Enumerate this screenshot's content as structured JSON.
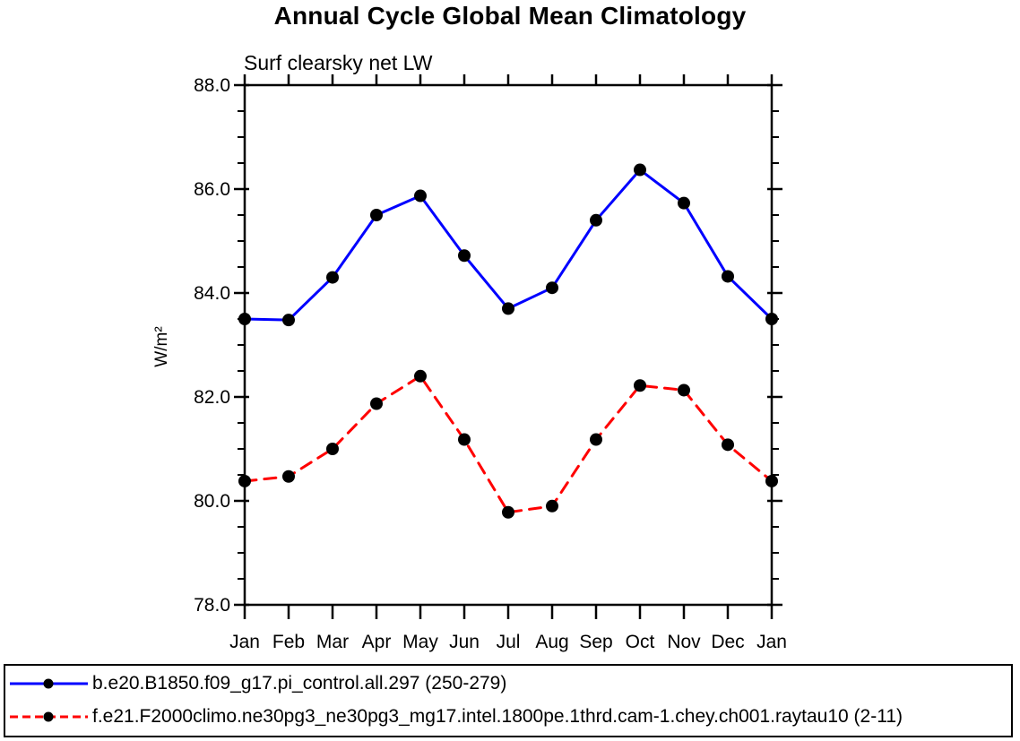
{
  "page": {
    "background": "#ffffff",
    "axis_color": "#000000"
  },
  "chart_data": {
    "type": "line",
    "title": "Annual Cycle Global Mean Climatology",
    "subtitle": "Surf clearsky net LW",
    "ylabel": "W/m²",
    "xlabel": "",
    "categories": [
      "Jan",
      "Feb",
      "Mar",
      "Apr",
      "May",
      "Jun",
      "Jul",
      "Aug",
      "Sep",
      "Oct",
      "Nov",
      "Dec",
      "Jan"
    ],
    "ylim": [
      78.0,
      88.0
    ],
    "ytick_values": [
      78,
      80,
      82,
      84,
      86,
      88
    ],
    "ytick_labels": [
      "78.0",
      "80.0",
      "82.0",
      "84.0",
      "86.0",
      "88.0"
    ],
    "minor_tick_step": 0.5,
    "grid": false,
    "legend_position": "bottom",
    "marker_color": "#000000",
    "series": [
      {
        "name": "b.e20.B1850.f09_g17.pi_control.all.297 (250-279)",
        "color": "#0000ff",
        "style": "solid",
        "marker": "filled-circle",
        "values": [
          83.5,
          83.48,
          84.3,
          85.5,
          85.87,
          84.72,
          83.7,
          84.1,
          85.4,
          86.37,
          85.73,
          84.32,
          83.5
        ]
      },
      {
        "name": "f.e21.F2000climo.ne30pg3_ne30pg3_mg17.intel.1800pe.1thrd.cam-1.chey.ch001.raytau10 (2-11)",
        "color": "#ff0000",
        "style": "dashed",
        "marker": "filled-circle",
        "values": [
          80.38,
          80.47,
          81.0,
          81.87,
          82.4,
          81.18,
          79.78,
          79.9,
          81.18,
          82.22,
          82.13,
          81.08,
          80.38
        ]
      }
    ]
  }
}
